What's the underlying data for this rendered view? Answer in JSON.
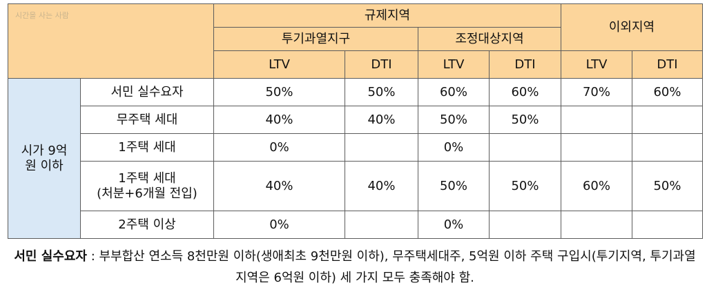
{
  "watermark": "시간을 사는 사람",
  "header": {
    "regulated": "규제지역",
    "other": "이외지역",
    "speculation": "투기과열지구",
    "adjustment": "조정대상지역",
    "ltv": "LTV",
    "dti": "DTI"
  },
  "side_label": {
    "line1": "시가 9억",
    "line2": "원 이하"
  },
  "rows": [
    {
      "label": "서민 실수요자",
      "label2": "",
      "cells": [
        "50%",
        "50%",
        "60%",
        "60%",
        "70%",
        "60%"
      ]
    },
    {
      "label": "무주택 세대",
      "label2": "",
      "cells": [
        "40%",
        "40%",
        "50%",
        "50%",
        "",
        ""
      ]
    },
    {
      "label": "1주택 세대",
      "label2": "",
      "cells": [
        "0%",
        "",
        "0%",
        "",
        "",
        ""
      ]
    },
    {
      "label": "1주택 세대",
      "label2": "(처분+6개월 전입)",
      "cells": [
        "40%",
        "40%",
        "50%",
        "50%",
        "60%",
        "50%"
      ]
    },
    {
      "label": "2주택 이상",
      "label2": "",
      "cells": [
        "0%",
        "",
        "0%",
        "",
        "",
        ""
      ]
    }
  ],
  "note": {
    "term": "서민 실수요자",
    "separator": " : ",
    "text": "부부합산 연소득 8천만원 이하(생애최초 9천만원 이하), 무주택세대주, 5억원 이하 주택 구입시(투기지역, 투기과열지역은 6억원 이하) 세 가지 모두 충족해야 함."
  }
}
